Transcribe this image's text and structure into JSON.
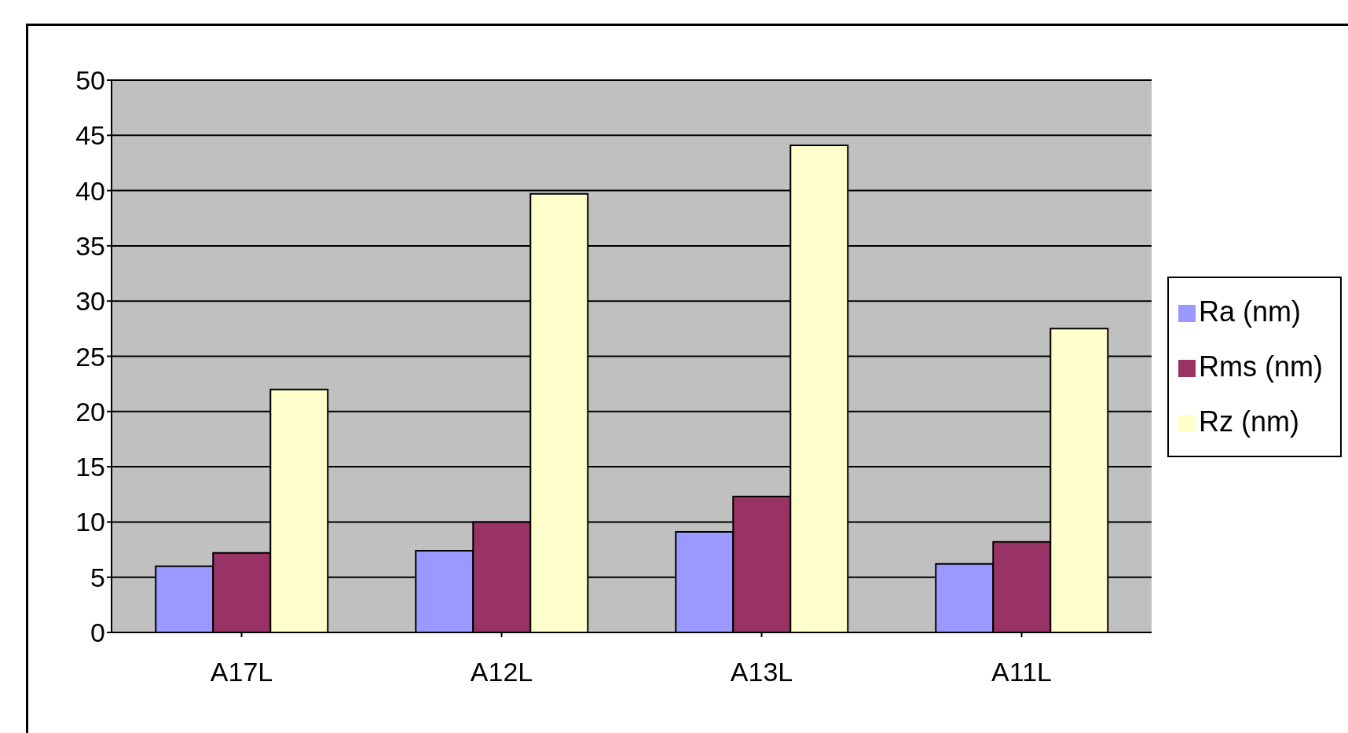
{
  "chart_data": {
    "type": "bar",
    "categories": [
      "A17L",
      "A12L",
      "A13L",
      "A11L"
    ],
    "series": [
      {
        "name": "Ra (nm)",
        "color": "#9999ff",
        "values": [
          6.0,
          7.4,
          9.1,
          6.2
        ]
      },
      {
        "name": "Rms (nm)",
        "color": "#993366",
        "values": [
          7.2,
          10.0,
          12.3,
          8.2
        ]
      },
      {
        "name": "Rz (nm)",
        "color": "#ffffcc",
        "values": [
          22.0,
          39.7,
          44.1,
          27.5
        ]
      }
    ],
    "ylim": [
      0,
      50
    ],
    "yticks": [
      0,
      5,
      10,
      15,
      20,
      25,
      30,
      35,
      40,
      45,
      50
    ],
    "grid": "y",
    "legend": "right"
  }
}
